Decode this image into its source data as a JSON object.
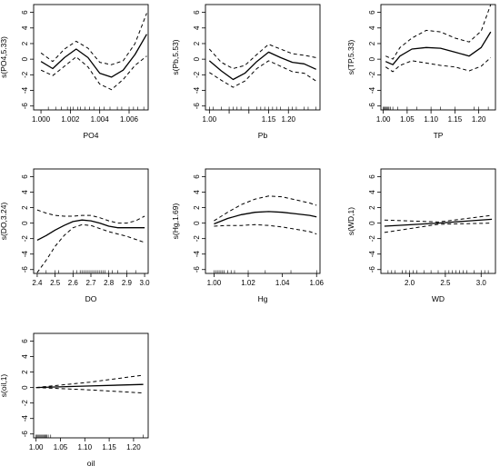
{
  "chart_data": [
    {
      "type": "line",
      "xlabel": "PO4",
      "ylabel": "s(PO4,5.33)",
      "xlim": [
        0.9995,
        1.0073
      ],
      "ylim": [
        -6.5,
        7
      ],
      "xticks": [
        1.0,
        1.002,
        1.004,
        1.006
      ],
      "xtick_labels": [
        "1.000",
        "1.002",
        "1.004",
        "1.006"
      ],
      "yticks": [
        -6,
        -4,
        -2,
        0,
        2,
        4,
        6
      ],
      "ytick_labels": [
        "-6",
        "-4",
        "-2",
        "0",
        "2",
        "4",
        "6"
      ],
      "series": [
        {
          "style": "solid",
          "x": [
            1.0,
            1.0008,
            1.0016,
            1.0024,
            1.0032,
            1.004,
            1.0048,
            1.0056,
            1.0064,
            1.0072
          ],
          "y": [
            -0.3,
            -1.2,
            0.2,
            1.3,
            0.2,
            -1.8,
            -2.3,
            -1.4,
            0.6,
            3.2
          ]
        },
        {
          "style": "dashed",
          "x": [
            1.0,
            1.0008,
            1.0016,
            1.0024,
            1.0032,
            1.004,
            1.0048,
            1.0056,
            1.0064,
            1.0072
          ],
          "y": [
            0.8,
            -0.3,
            1.3,
            2.3,
            1.4,
            -0.4,
            -0.7,
            -0.2,
            2.0,
            5.9
          ]
        },
        {
          "style": "dashed",
          "x": [
            1.0,
            1.0008,
            1.0016,
            1.0024,
            1.0032,
            1.004,
            1.0048,
            1.0056,
            1.0064,
            1.0072
          ],
          "y": [
            -1.4,
            -2.1,
            -0.9,
            0.3,
            -1.0,
            -3.2,
            -3.9,
            -2.6,
            -0.8,
            0.4
          ]
        }
      ],
      "rug": [
        1.0005,
        1.001,
        1.0014,
        1.0018,
        1.002,
        1.0022,
        1.0025,
        1.0027,
        1.003,
        1.0033,
        1.0036,
        1.004,
        1.0043,
        1.0047,
        1.0052,
        1.0055,
        1.006,
        1.0063,
        1.0066,
        1.007
      ]
    },
    {
      "type": "line",
      "xlabel": "Pb",
      "ylabel": "s(Pb,5.53)",
      "xlim": [
        0.99,
        1.28
      ],
      "ylim": [
        -6.5,
        7
      ],
      "xticks": [
        1.0,
        1.05,
        1.1,
        1.15,
        1.2
      ],
      "xtick_labels": [
        "1.00",
        "",
        "",
        "1.15",
        "1.20"
      ],
      "yticks": [
        -6,
        -4,
        -2,
        0,
        2,
        4,
        6
      ],
      "ytick_labels": [
        "-6",
        "-4",
        "-2",
        "0",
        "2",
        "4",
        "6"
      ],
      "series": [
        {
          "style": "solid",
          "x": [
            1.0,
            1.03,
            1.06,
            1.09,
            1.12,
            1.15,
            1.18,
            1.21,
            1.24,
            1.27
          ],
          "y": [
            -0.2,
            -1.5,
            -2.6,
            -1.8,
            -0.3,
            0.9,
            0.2,
            -0.4,
            -0.6,
            -1.3
          ]
        },
        {
          "style": "dashed",
          "x": [
            1.0,
            1.03,
            1.06,
            1.09,
            1.12,
            1.15,
            1.18,
            1.21,
            1.24,
            1.27
          ],
          "y": [
            1.3,
            -0.4,
            -1.2,
            -0.8,
            0.6,
            1.9,
            1.3,
            0.7,
            0.5,
            0.2
          ]
        },
        {
          "style": "dashed",
          "x": [
            1.0,
            1.03,
            1.06,
            1.09,
            1.12,
            1.15,
            1.18,
            1.21,
            1.24,
            1.27
          ],
          "y": [
            -1.7,
            -2.7,
            -3.6,
            -2.8,
            -1.2,
            -0.2,
            -0.9,
            -1.6,
            -1.8,
            -2.8
          ]
        }
      ],
      "rug": [
        1.0,
        1.01,
        1.03,
        1.05,
        1.06,
        1.07,
        1.08,
        1.1,
        1.12,
        1.13,
        1.14,
        1.15,
        1.16,
        1.17,
        1.18,
        1.2,
        1.21,
        1.22,
        1.24,
        1.25,
        1.27
      ]
    },
    {
      "type": "line",
      "xlabel": "TP",
      "ylabel": "s(TP,5.33)",
      "xlim": [
        0.995,
        1.235
      ],
      "ylim": [
        -6.5,
        7
      ],
      "xticks": [
        1.0,
        1.05,
        1.1,
        1.15,
        1.2
      ],
      "xtick_labels": [
        "1.00",
        "1.05",
        "1.10",
        "1.15",
        "1.20"
      ],
      "yticks": [
        -6,
        -4,
        -2,
        0,
        2,
        4,
        6
      ],
      "ytick_labels": [
        "-6",
        "-4",
        "-2",
        "0",
        "2",
        "4",
        "6"
      ],
      "series": [
        {
          "style": "solid",
          "x": [
            1.005,
            1.02,
            1.035,
            1.06,
            1.09,
            1.12,
            1.15,
            1.18,
            1.205,
            1.225
          ],
          "y": [
            -0.3,
            -0.7,
            0.4,
            1.3,
            1.5,
            1.4,
            0.9,
            0.4,
            1.5,
            3.5
          ]
        },
        {
          "style": "dashed",
          "x": [
            1.005,
            1.02,
            1.035,
            1.06,
            1.09,
            1.12,
            1.15,
            1.18,
            1.205,
            1.225
          ],
          "y": [
            0.4,
            0.0,
            1.5,
            2.7,
            3.7,
            3.5,
            2.7,
            2.2,
            3.6,
            7.0
          ]
        },
        {
          "style": "dashed",
          "x": [
            1.005,
            1.02,
            1.035,
            1.06,
            1.09,
            1.12,
            1.15,
            1.18,
            1.205,
            1.225
          ],
          "y": [
            -1.0,
            -1.6,
            -0.8,
            -0.2,
            -0.5,
            -0.8,
            -1.0,
            -1.5,
            -0.9,
            0.2
          ]
        }
      ],
      "rug": [
        1.0,
        1.002,
        1.004,
        1.006,
        1.008,
        1.01,
        1.012,
        1.015,
        1.02,
        1.03,
        1.05,
        1.07,
        1.1,
        1.12,
        1.15,
        1.19,
        1.2,
        1.22
      ]
    },
    {
      "type": "line",
      "xlabel": "DO",
      "ylabel": "s(DO,3.24)",
      "xlim": [
        2.38,
        3.02
      ],
      "ylim": [
        -6.5,
        7
      ],
      "xticks": [
        2.4,
        2.5,
        2.6,
        2.7,
        2.8,
        2.9,
        3.0
      ],
      "xtick_labels": [
        "2.4",
        "2.5",
        "2.6",
        "2.7",
        "2.8",
        "2.9",
        "3.0"
      ],
      "yticks": [
        -6,
        -4,
        -2,
        0,
        2,
        4,
        6
      ],
      "ytick_labels": [
        "-6",
        "-4",
        "-2",
        "0",
        "2",
        "4",
        "6"
      ],
      "series": [
        {
          "style": "solid",
          "x": [
            2.4,
            2.45,
            2.5,
            2.55,
            2.6,
            2.65,
            2.7,
            2.75,
            2.8,
            2.85,
            2.9,
            2.95,
            3.0
          ],
          "y": [
            -2.2,
            -1.6,
            -0.9,
            -0.3,
            0.2,
            0.4,
            0.3,
            0.0,
            -0.4,
            -0.6,
            -0.6,
            -0.6,
            -0.6
          ]
        },
        {
          "style": "dashed",
          "x": [
            2.4,
            2.45,
            2.5,
            2.55,
            2.6,
            2.65,
            2.7,
            2.75,
            2.8,
            2.85,
            2.9,
            2.95,
            3.0
          ],
          "y": [
            1.7,
            1.3,
            1.0,
            0.9,
            0.9,
            1.0,
            1.0,
            0.7,
            0.3,
            0.0,
            0.0,
            0.3,
            0.9
          ]
        },
        {
          "style": "dashed",
          "x": [
            2.4,
            2.45,
            2.5,
            2.55,
            2.6,
            2.65,
            2.7,
            2.75,
            2.8,
            2.85,
            2.9,
            2.95,
            3.0
          ],
          "y": [
            -6.4,
            -4.8,
            -3.0,
            -1.6,
            -0.6,
            -0.2,
            -0.3,
            -0.7,
            -1.1,
            -1.4,
            -1.7,
            -2.1,
            -2.5
          ]
        }
      ],
      "rug": [
        2.45,
        2.5,
        2.52,
        2.6,
        2.62,
        2.64,
        2.65,
        2.66,
        2.67,
        2.68,
        2.69,
        2.7,
        2.71,
        2.72,
        2.73,
        2.74,
        2.75,
        2.76,
        2.77,
        2.78,
        2.8,
        2.82,
        2.85,
        2.9,
        2.95
      ]
    },
    {
      "type": "line",
      "xlabel": "Hg",
      "ylabel": "s(Hg,1.69)",
      "xlim": [
        0.995,
        1.062
      ],
      "ylim": [
        -6.5,
        7
      ],
      "xticks": [
        1.0,
        1.02,
        1.04,
        1.06
      ],
      "xtick_labels": [
        "1.00",
        "1.02",
        "1.04",
        "1.06"
      ],
      "yticks": [
        -6,
        -4,
        -2,
        0,
        2,
        4,
        6
      ],
      "ytick_labels": [
        "-6",
        "-4",
        "-2",
        "0",
        "2",
        "4",
        "6"
      ],
      "series": [
        {
          "style": "solid",
          "x": [
            1.0,
            1.008,
            1.016,
            1.024,
            1.032,
            1.04,
            1.048,
            1.056,
            1.06
          ],
          "y": [
            -0.1,
            0.6,
            1.1,
            1.4,
            1.5,
            1.4,
            1.2,
            1.0,
            0.8
          ]
        },
        {
          "style": "dashed",
          "x": [
            1.0,
            1.008,
            1.016,
            1.024,
            1.032,
            1.04,
            1.048,
            1.056,
            1.06
          ],
          "y": [
            0.3,
            1.4,
            2.4,
            3.1,
            3.5,
            3.4,
            3.0,
            2.6,
            2.3
          ]
        },
        {
          "style": "dashed",
          "x": [
            1.0,
            1.008,
            1.016,
            1.024,
            1.032,
            1.04,
            1.048,
            1.056,
            1.06
          ],
          "y": [
            -0.4,
            -0.3,
            -0.3,
            -0.2,
            -0.3,
            -0.5,
            -0.8,
            -1.1,
            -1.4
          ]
        }
      ],
      "rug": [
        1.0,
        1.001,
        1.002,
        1.003,
        1.004,
        1.005,
        1.006,
        1.008,
        1.01,
        1.012,
        1.02,
        1.03,
        1.045,
        1.06
      ]
    },
    {
      "type": "line",
      "xlabel": "WD",
      "ylabel": "s(WD,1)",
      "xlim": [
        1.6,
        3.2
      ],
      "ylim": [
        -6.5,
        7
      ],
      "xticks": [
        2.0,
        2.5,
        3.0
      ],
      "xtick_labels": [
        "2.0",
        "2.5",
        "3.0"
      ],
      "yticks": [
        -6,
        -4,
        -2,
        0,
        2,
        4,
        6
      ],
      "ytick_labels": [
        "-6",
        "-4",
        "-2",
        "0",
        "2",
        "4",
        "6"
      ],
      "series": [
        {
          "style": "solid",
          "x": [
            1.65,
            2.4,
            3.15
          ],
          "y": [
            -0.4,
            0.0,
            0.5
          ]
        },
        {
          "style": "dashed",
          "x": [
            1.65,
            2.4,
            3.15
          ],
          "y": [
            0.4,
            0.15,
            1.0
          ]
        },
        {
          "style": "dashed",
          "x": [
            1.65,
            2.4,
            3.15
          ],
          "y": [
            -1.2,
            -0.15,
            0.0
          ]
        }
      ],
      "rug": [
        1.7,
        1.75,
        1.8,
        1.9,
        1.95,
        2.0,
        2.05,
        2.1,
        2.2,
        2.3,
        2.4,
        2.5,
        2.55,
        2.6,
        2.65,
        2.7,
        2.75,
        2.8,
        2.9,
        3.0,
        3.05,
        3.1
      ]
    },
    {
      "type": "line",
      "xlabel": "oil",
      "ylabel": "s(oil,1)",
      "xlim": [
        0.995,
        1.23
      ],
      "ylim": [
        -6.5,
        7
      ],
      "xticks": [
        1.0,
        1.05,
        1.1,
        1.15,
        1.2
      ],
      "xtick_labels": [
        "1.00",
        "1.05",
        "1.10",
        "1.15",
        "1.20"
      ],
      "yticks": [
        -6,
        -4,
        -2,
        0,
        2,
        4,
        6
      ],
      "ytick_labels": [
        "-6",
        "-4",
        "-2",
        "0",
        "2",
        "4",
        "6"
      ],
      "series": [
        {
          "style": "solid",
          "x": [
            1.0,
            1.11,
            1.22
          ],
          "y": [
            0.0,
            0.2,
            0.4
          ]
        },
        {
          "style": "dashed",
          "x": [
            1.0,
            1.11,
            1.22
          ],
          "y": [
            0.0,
            0.7,
            1.6
          ]
        },
        {
          "style": "dashed",
          "x": [
            1.0,
            1.11,
            1.22
          ],
          "y": [
            0.0,
            -0.3,
            -0.7
          ]
        }
      ],
      "rug": [
        1.0,
        1.002,
        1.004,
        1.006,
        1.008,
        1.01,
        1.012,
        1.014,
        1.016,
        1.018,
        1.02,
        1.022,
        1.025,
        1.03,
        1.22
      ]
    }
  ]
}
